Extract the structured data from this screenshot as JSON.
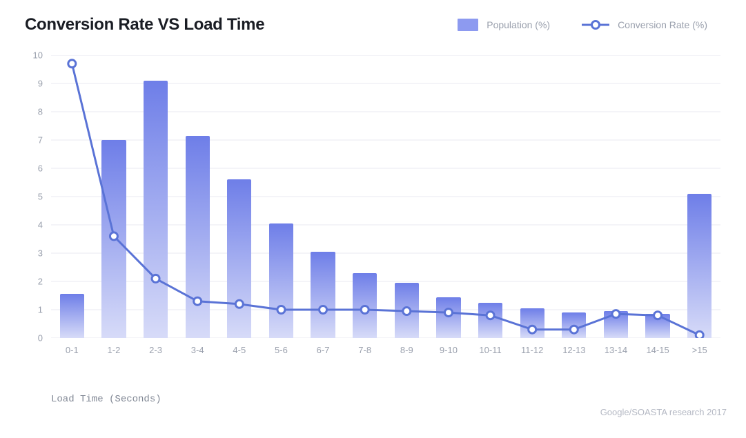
{
  "title": "Conversion Rate VS Load Time",
  "legend": {
    "population": "Population (%)",
    "conversion": "Conversion Rate (%)"
  },
  "axis_caption": "Load Time (Seconds)",
  "source": "Google/SOASTA research 2017",
  "chart": {
    "type": "bar+line",
    "categories": [
      "0-1",
      "1-2",
      "2-3",
      "3-4",
      "4-5",
      "5-6",
      "6-7",
      "7-8",
      "8-9",
      "9-10",
      "10-11",
      "11-12",
      "12-13",
      "13-14",
      "14-15",
      ">15"
    ],
    "population_values": [
      1.55,
      7.0,
      9.1,
      7.15,
      5.6,
      4.05,
      3.05,
      2.3,
      1.95,
      1.45,
      1.25,
      1.05,
      0.9,
      0.95,
      0.85,
      5.1
    ],
    "conversion_values": [
      9.7,
      3.6,
      2.1,
      1.3,
      1.2,
      1.0,
      1.0,
      1.0,
      0.95,
      0.9,
      0.8,
      0.3,
      0.3,
      0.85,
      0.8,
      0.1
    ],
    "ylim": [
      0,
      10
    ],
    "ytick_step": 1,
    "bar_color_top": "#6e7ee8",
    "bar_color_bottom": "#d7dbf8",
    "line_color": "#5a73d6",
    "marker_fill": "#ffffff",
    "marker_stroke": "#5a73d6",
    "marker_radius": 5.5,
    "line_width": 3,
    "grid_color": "#e9eaf0",
    "background_color": "#ffffff",
    "label_color": "#9aa0ad",
    "title_color": "#1a1d24",
    "title_fontsize": 24,
    "label_fontsize": 13,
    "bar_width": 0.58
  }
}
